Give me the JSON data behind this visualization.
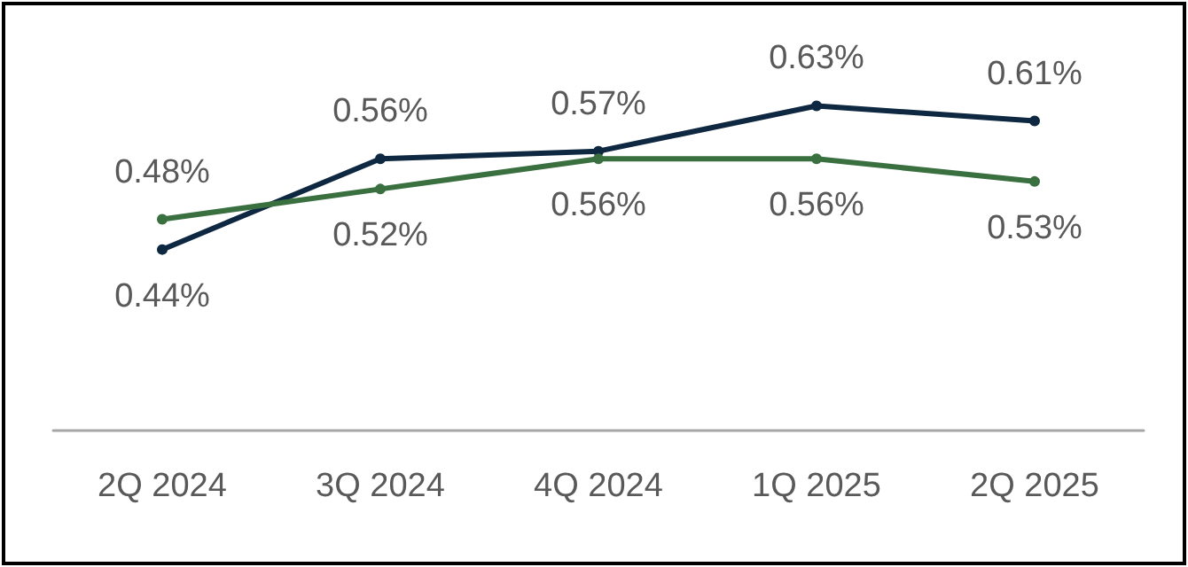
{
  "chart_data": {
    "type": "line",
    "categories": [
      "2Q 2024",
      "3Q 2024",
      "4Q 2024",
      "1Q 2025",
      "2Q 2025"
    ],
    "series": [
      {
        "color": "#0e2841",
        "values": [
          0.44,
          0.56,
          0.57,
          0.63,
          0.61
        ],
        "value_labels": [
          "0.44%",
          "0.56%",
          "0.57%",
          "0.63%",
          "0.61%"
        ]
      },
      {
        "color": "#3a7040",
        "values": [
          0.48,
          0.52,
          0.56,
          0.56,
          0.53
        ],
        "value_labels": [
          "0.48%",
          "0.52%",
          "0.56%",
          "0.56%",
          "0.53%"
        ]
      }
    ],
    "marker": "circle",
    "line_style": "solid"
  }
}
